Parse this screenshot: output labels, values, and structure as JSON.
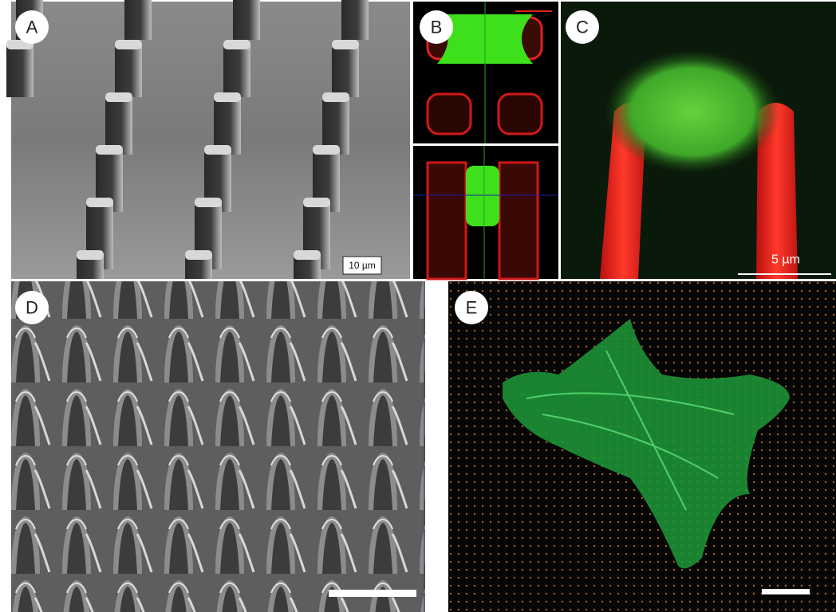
{
  "panels": [
    {
      "label": "A",
      "scale_bar": "10 µm"
    },
    {
      "label": "B"
    },
    {
      "label": "C",
      "scale_bar": "5 µm"
    },
    {
      "label": "D"
    },
    {
      "label": "E"
    }
  ]
}
